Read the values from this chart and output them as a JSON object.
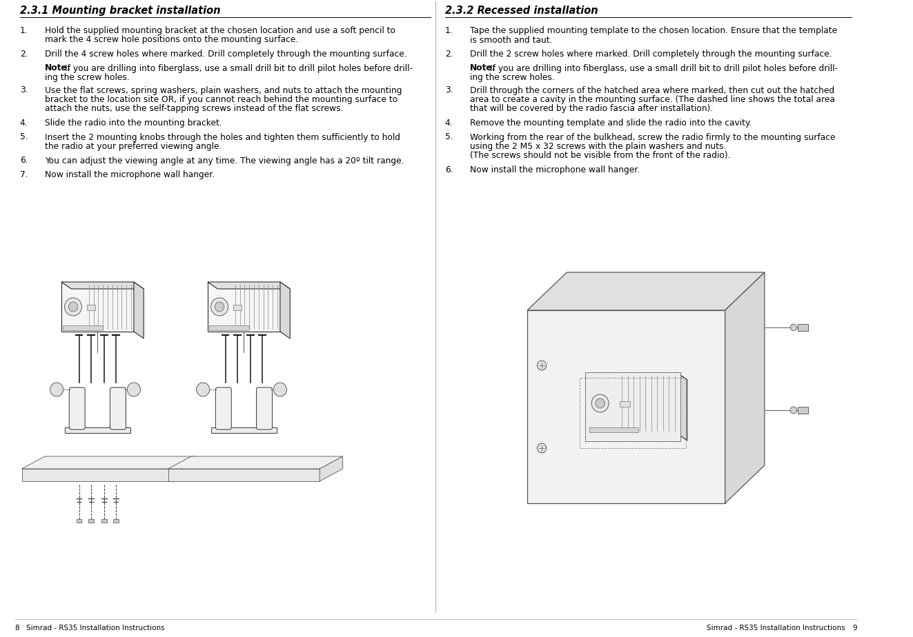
{
  "bg_color": "#ffffff",
  "text_color": "#000000",
  "left_section": {
    "title": "2.3.1 Mounting bracket installation",
    "items": [
      {
        "num": "1.",
        "text": "Hold the supplied mounting bracket at the chosen location and use a soft pencil to\nmark the 4 screw hole positions onto the mounting surface.",
        "is_note": false
      },
      {
        "num": "2.",
        "text": "Drill the 4 screw holes where marked. Drill completely through the mounting surface.",
        "is_note": false
      },
      {
        "num": "",
        "note_label": "Note:",
        "note_body": " If you are drilling into fiberglass, use a small drill bit to drill pilot holes before drill-\ning the screw holes.",
        "is_note": true
      },
      {
        "num": "3.",
        "text": "Use the flat screws, spring washers, plain washers, and nuts to attach the mounting\nbracket to the location site OR, if you cannot reach behind the mounting surface to\nattach the nuts, use the self-tapping screws instead of the flat screws.",
        "is_note": false
      },
      {
        "num": "4.",
        "text": "Slide the radio into the mounting bracket.",
        "is_note": false
      },
      {
        "num": "5.",
        "text": "Insert the 2 mounting knobs through the holes and tighten them sufficiently to hold\nthe radio at your preferred viewing angle.",
        "is_note": false
      },
      {
        "num": "6.",
        "text": "You can adjust the viewing angle at any time. The viewing angle has a 20º tilt range.",
        "is_note": false
      },
      {
        "num": "7.",
        "text": "Now install the microphone wall hanger.",
        "is_note": false
      }
    ]
  },
  "right_section": {
    "title": "2.3.2 Recessed installation",
    "items": [
      {
        "num": "1.",
        "text": "Tape the supplied mounting template to the chosen location. Ensure that the template\nis smooth and taut.",
        "is_note": false
      },
      {
        "num": "2.",
        "text": "Drill the 2 screw holes where marked. Drill completely through the mounting surface.",
        "is_note": false
      },
      {
        "num": "",
        "note_label": "Note:",
        "note_body": " If you are drilling into fiberglass, use a small drill bit to drill pilot holes before drill-\ning the screw holes.",
        "is_note": true
      },
      {
        "num": "3.",
        "text": "Drill through the corners of the hatched area where marked, then cut out the hatched\narea to create a cavity in the mounting surface. (The dashed line shows the total area\nthat will be covered by the radio fascia after installation).",
        "is_note": false
      },
      {
        "num": "4.",
        "text": "Remove the mounting template and slide the radio into the cavity.",
        "is_note": false
      },
      {
        "num": "5.",
        "text": "Working from the rear of the bulkhead, screw the radio firmly to the mounting surface\nusing the 2 M5 x 32 screws with the plain washers and nuts.\n(The screws should not be visible from the front of the radio).",
        "is_note": false
      },
      {
        "num": "6.",
        "text": "Now install the microphone wall hanger.",
        "is_note": false
      }
    ]
  },
  "footer_left_num": "8",
  "footer_left_text": "Simrad - RS35 Installation Instructions",
  "footer_right_text": "Simrad - RS35 Installation Instructions",
  "footer_right_num": "9"
}
